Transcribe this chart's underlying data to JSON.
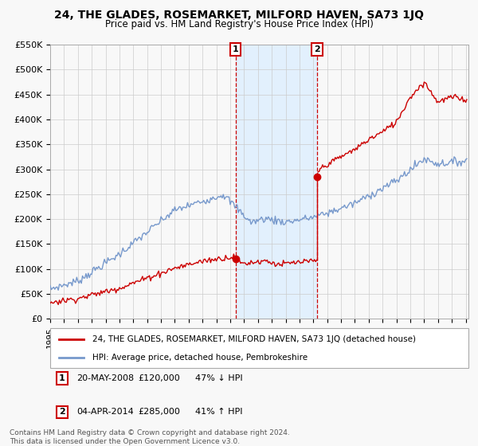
{
  "title": "24, THE GLADES, ROSEMARKET, MILFORD HAVEN, SA73 1JQ",
  "subtitle": "Price paid vs. HM Land Registry's House Price Index (HPI)",
  "sale1_date": "20-MAY-2008",
  "sale1_price": 120000,
  "sale1_label": "47% ↓ HPI",
  "sale2_date": "04-APR-2014",
  "sale2_price": 285000,
  "sale2_label": "41% ↑ HPI",
  "legend1": "24, THE GLADES, ROSEMARKET, MILFORD HAVEN, SA73 1JQ (detached house)",
  "legend2": "HPI: Average price, detached house, Pembrokeshire",
  "footnote": "Contains HM Land Registry data © Crown copyright and database right 2024.\nThis data is licensed under the Open Government Licence v3.0.",
  "ylim": [
    0,
    550000
  ],
  "yticks": [
    0,
    50000,
    100000,
    150000,
    200000,
    250000,
    300000,
    350000,
    400000,
    450000,
    500000,
    550000
  ],
  "ytick_labels": [
    "£0",
    "£50K",
    "£100K",
    "£150K",
    "£200K",
    "£250K",
    "£300K",
    "£350K",
    "£400K",
    "£450K",
    "£500K",
    "£550K"
  ],
  "red_color": "#cc0000",
  "blue_color": "#7799cc",
  "sale_marker_color": "#cc0000",
  "vline_color": "#cc0000",
  "shade_color": "#ddeeff",
  "background_color": "#f8f8f8",
  "grid_color": "#cccccc",
  "sale1_x": 2008.375,
  "sale2_x": 2014.25
}
